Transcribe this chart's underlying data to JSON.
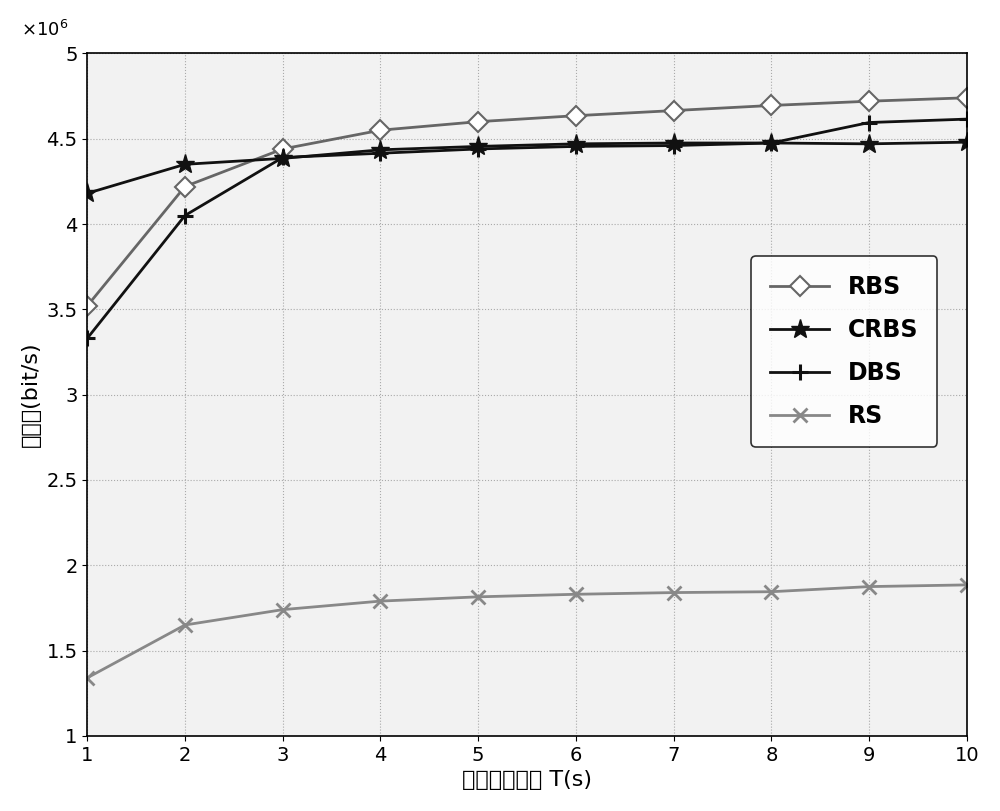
{
  "x": [
    1,
    2,
    3,
    4,
    5,
    6,
    7,
    8,
    9,
    10
  ],
  "RBS": [
    3520000.0,
    4220000.0,
    4440000.0,
    4550000.0,
    4600000.0,
    4635000.0,
    4665000.0,
    4695000.0,
    4720000.0,
    4740000.0
  ],
  "CRBS": [
    4180000.0,
    4350000.0,
    4385000.0,
    4435000.0,
    4455000.0,
    4470000.0,
    4475000.0,
    4475000.0,
    4470000.0,
    4480000.0
  ],
  "DBS": [
    3330000.0,
    4050000.0,
    4390000.0,
    4415000.0,
    4440000.0,
    4455000.0,
    4460000.0,
    4475000.0,
    4595000.0,
    4615000.0
  ],
  "RS": [
    1340000.0,
    1650000.0,
    1740000.0,
    1790000.0,
    1815000.0,
    1830000.0,
    1840000.0,
    1845000.0,
    1875000.0,
    1885000.0
  ],
  "xlabel": "系统通信时间 T(s)",
  "ylabel": "吸吐量(bit/s)",
  "xlim": [
    1,
    10
  ],
  "ylim": [
    1000000.0,
    5000000.0
  ],
  "yticks": [
    1000000.0,
    1500000.0,
    2000000.0,
    2500000.0,
    3000000.0,
    3500000.0,
    4000000.0,
    4500000.0,
    5000000.0
  ],
  "ytick_labels": [
    "1",
    "1.5",
    "2",
    "2.5",
    "3",
    "3.5",
    "4",
    "4.5",
    "5"
  ],
  "xticks": [
    1,
    2,
    3,
    4,
    5,
    6,
    7,
    8,
    9,
    10
  ],
  "color_RBS": "#666666",
  "color_CRBS": "#111111",
  "color_DBS": "#111111",
  "color_RS": "#888888",
  "legend_labels": [
    "RBS",
    "CRBS",
    "DBS",
    "RS"
  ],
  "bg_color": "#f2f2f2"
}
